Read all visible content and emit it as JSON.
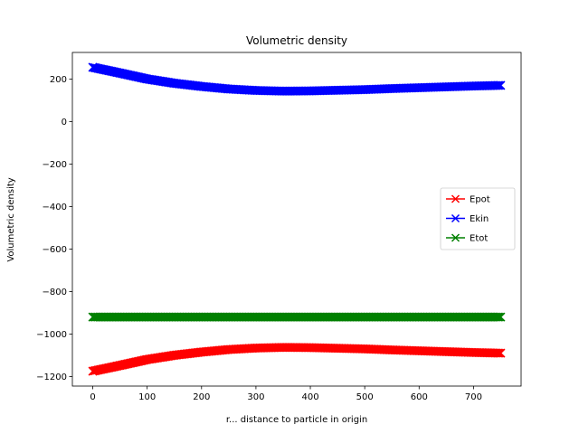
{
  "chart_data": {
    "type": "line",
    "title": "Volumetric density",
    "xlabel": "r... distance to particle in origin",
    "ylabel": "Volumetric density",
    "xlim": [
      -37.5,
      787.5
    ],
    "ylim": [
      -1245,
      325
    ],
    "xticks": [
      0,
      100,
      200,
      300,
      400,
      500,
      600,
      700
    ],
    "yticks": [
      -1200,
      -1000,
      -800,
      -600,
      -400,
      -200,
      0,
      200
    ],
    "grid": false,
    "legend_position": "center-right",
    "marker": "x",
    "series": [
      {
        "name": "Epot",
        "color": "#ff0000",
        "x": [
          0,
          50,
          100,
          150,
          200,
          250,
          300,
          350,
          400,
          450,
          500,
          550,
          600,
          650,
          700,
          750
        ],
        "y": [
          -1175,
          -1148,
          -1120,
          -1100,
          -1085,
          -1073,
          -1066,
          -1063,
          -1064,
          -1067,
          -1070,
          -1075,
          -1079,
          -1083,
          -1087,
          -1090
        ]
      },
      {
        "name": "Ekin",
        "color": "#0000ff",
        "x": [
          0,
          50,
          100,
          150,
          200,
          250,
          300,
          350,
          400,
          450,
          500,
          550,
          600,
          650,
          700,
          750
        ],
        "y": [
          255,
          228,
          200,
          180,
          165,
          153,
          146,
          143,
          144,
          147,
          150,
          155,
          159,
          163,
          167,
          170
        ]
      },
      {
        "name": "Etot",
        "color": "#008000",
        "x": [
          0,
          50,
          100,
          150,
          200,
          250,
          300,
          350,
          400,
          450,
          500,
          550,
          600,
          650,
          700,
          750
        ],
        "y": [
          -920,
          -920,
          -920,
          -920,
          -920,
          -920,
          -920,
          -920,
          -920,
          -920,
          -920,
          -920,
          -920,
          -920,
          -920,
          -920
        ]
      }
    ]
  }
}
